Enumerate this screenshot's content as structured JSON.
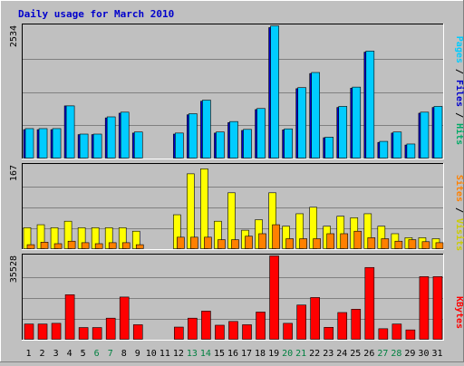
{
  "chart_data": [
    {
      "type": "bar",
      "title": "Daily usage for March 2010",
      "categories": [
        "1",
        "2",
        "3",
        "4",
        "5",
        "6",
        "7",
        "8",
        "9",
        "10",
        "11",
        "12",
        "13",
        "14",
        "15",
        "16",
        "17",
        "18",
        "19",
        "20",
        "21",
        "22",
        "23",
        "24",
        "25",
        "26",
        "27",
        "28",
        "29",
        "30",
        "31"
      ],
      "weekend_days": [
        "6",
        "7",
        "13",
        "14",
        "20",
        "21",
        "27",
        "28"
      ],
      "ylabel_max": "2534",
      "legend": [
        "Pages",
        "Files",
        "Hits"
      ],
      "series": [
        {
          "name": "Hits",
          "color": "#00ccff",
          "values": [
            565,
            565,
            565,
            1000,
            460,
            460,
            790,
            880,
            500,
            0,
            0,
            480,
            850,
            1110,
            500,
            700,
            550,
            950,
            2534,
            560,
            1350,
            1640,
            400,
            990,
            1360,
            2050,
            320,
            500,
            270,
            880,
            990
          ]
        },
        {
          "name": "Files",
          "color": "#0000cc",
          "values": [
            545,
            545,
            545,
            1000,
            450,
            450,
            770,
            860,
            480,
            0,
            0,
            460,
            830,
            1090,
            480,
            680,
            530,
            930,
            2500,
            540,
            1330,
            1620,
            390,
            970,
            1340,
            2030,
            300,
            480,
            250,
            860,
            970
          ]
        },
        {
          "name": "Pages",
          "color": "#0040ff",
          "values": [
            0,
            0,
            0,
            0,
            0,
            0,
            0,
            0,
            0,
            0,
            0,
            0,
            0,
            0,
            0,
            0,
            0,
            0,
            0,
            0,
            0,
            0,
            0,
            0,
            0,
            0,
            0,
            0,
            0,
            0,
            0
          ]
        }
      ]
    },
    {
      "type": "bar",
      "ylabel_max": "167",
      "legend": [
        "Sites",
        "Visits"
      ],
      "series": [
        {
          "name": "Visits",
          "color": "#ffff00",
          "values": [
            42,
            48,
            42,
            55,
            42,
            42,
            42,
            42,
            35,
            0,
            0,
            68,
            150,
            160,
            55,
            112,
            37,
            58,
            112,
            45,
            70,
            83,
            45,
            65,
            62,
            70,
            45,
            30,
            22,
            22,
            20
          ]
        },
        {
          "name": "Sites",
          "color": "#ff8000",
          "values": [
            8,
            13,
            10,
            15,
            12,
            10,
            12,
            12,
            8,
            0,
            0,
            23,
            23,
            23,
            18,
            18,
            25,
            30,
            48,
            20,
            20,
            20,
            30,
            30,
            35,
            22,
            20,
            15,
            18,
            14,
            12
          ]
        }
      ]
    },
    {
      "type": "bar",
      "ylabel_max": "35528",
      "legend": [
        "KBytes"
      ],
      "series": [
        {
          "name": "KBytes",
          "color": "#ff0000",
          "values": [
            6500,
            6500,
            6800,
            19000,
            5000,
            5000,
            9000,
            18000,
            6200,
            0,
            0,
            5200,
            9000,
            12000,
            6000,
            7600,
            6200,
            11600,
            35528,
            6800,
            14600,
            17800,
            5100,
            11400,
            12800,
            30600,
            4500,
            6500,
            4000,
            26700,
            26700
          ]
        }
      ]
    }
  ]
}
